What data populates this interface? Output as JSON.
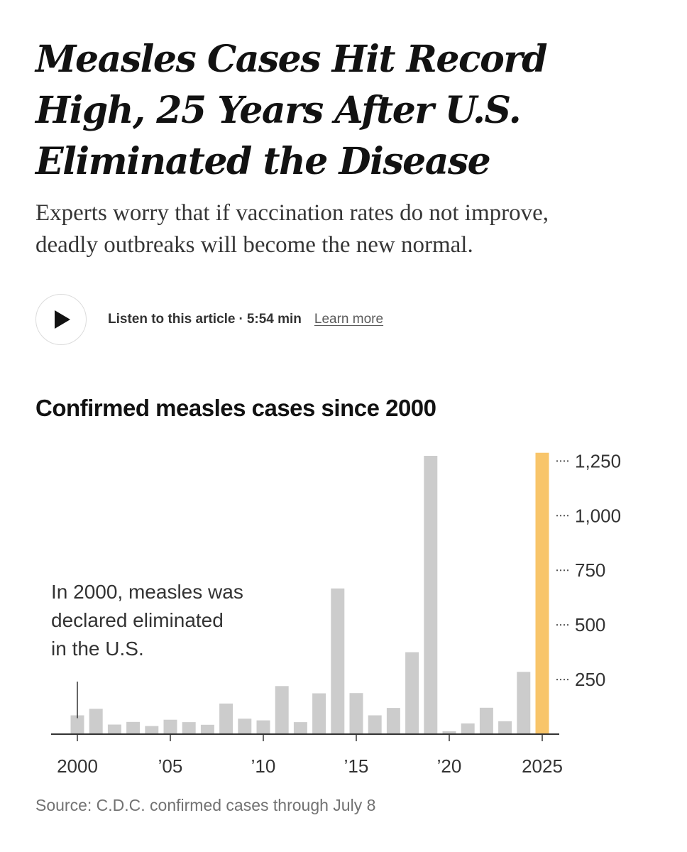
{
  "article": {
    "headline_lines": [
      "Measles Cases Hit Record",
      "High, 25 Years After U.S.",
      "Eliminated the Disease"
    ],
    "dek_lines": [
      "Experts worry that if vaccination rates do not improve,",
      "deadly outbreaks will become the new normal."
    ]
  },
  "audio": {
    "label": "Listen to this article",
    "separator": "·",
    "duration": "5:54 min",
    "learn_more": "Learn more"
  },
  "colors": {
    "bar": "#cccccc",
    "highlight": "#f8c56a",
    "axis": "#333333"
  },
  "chart_data": {
    "type": "bar",
    "title": "Confirmed measles cases since 2000",
    "categories": [
      2000,
      2001,
      2002,
      2003,
      2004,
      2005,
      2006,
      2007,
      2008,
      2009,
      2010,
      2011,
      2012,
      2013,
      2014,
      2015,
      2016,
      2017,
      2018,
      2019,
      2020,
      2021,
      2022,
      2023,
      2024,
      2025
    ],
    "values": [
      86,
      116,
      44,
      56,
      37,
      66,
      55,
      43,
      140,
      71,
      63,
      220,
      55,
      187,
      667,
      188,
      86,
      120,
      375,
      1274,
      13,
      49,
      121,
      59,
      285,
      1288
    ],
    "highlight_index": 25,
    "x_tick_labels": [
      {
        "year": 2000,
        "label": "2000"
      },
      {
        "year": 2005,
        "label": "’05"
      },
      {
        "year": 2010,
        "label": "’10"
      },
      {
        "year": 2015,
        "label": "’15"
      },
      {
        "year": 2020,
        "label": "’20"
      },
      {
        "year": 2025,
        "label": "2025"
      }
    ],
    "y_ticks": [
      250,
      500,
      750,
      1000,
      1250
    ],
    "y_tick_labels": [
      "250",
      "500",
      "750",
      "1,000",
      "1,250"
    ],
    "ylim": [
      0,
      1300
    ],
    "xlabel": "",
    "ylabel": "",
    "annotation": {
      "year": 2000,
      "lines": [
        "In 2000, measles was",
        "declared eliminated",
        "in the U.S."
      ]
    },
    "source": "Source: C.D.C. confirmed cases through July 8"
  }
}
